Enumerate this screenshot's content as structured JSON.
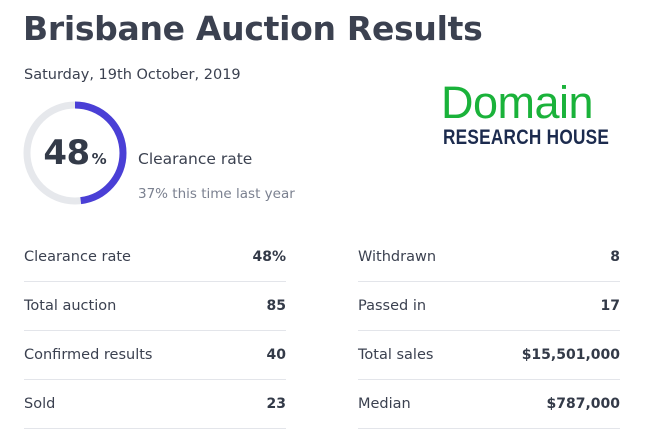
{
  "header": {
    "title": "Brisbane Auction Results",
    "date": "Saturday, 19th October, 2019"
  },
  "gauge": {
    "value": "48",
    "unit": "%",
    "fraction": 0.48,
    "track_color": "#e6e8ec",
    "fill_color": "#4a3fd6"
  },
  "clearance": {
    "label": "Clearance rate",
    "last_year": "37% this time last year"
  },
  "logo": {
    "domain": "Domain",
    "research_house": "RESEARCH HOUSE",
    "green": "#1ab23a",
    "navy": "#1c2b4e"
  },
  "stats": {
    "left": [
      {
        "label": "Clearance rate",
        "value": "48%"
      },
      {
        "label": "Total auction",
        "value": "85"
      },
      {
        "label": "Confirmed results",
        "value": "40"
      },
      {
        "label": "Sold",
        "value": "23"
      }
    ],
    "right": [
      {
        "label": "Withdrawn",
        "value": "8"
      },
      {
        "label": "Passed in",
        "value": "17"
      },
      {
        "label": "Total sales",
        "value": "$15,501,000"
      },
      {
        "label": "Median",
        "value": "$787,000"
      }
    ]
  }
}
